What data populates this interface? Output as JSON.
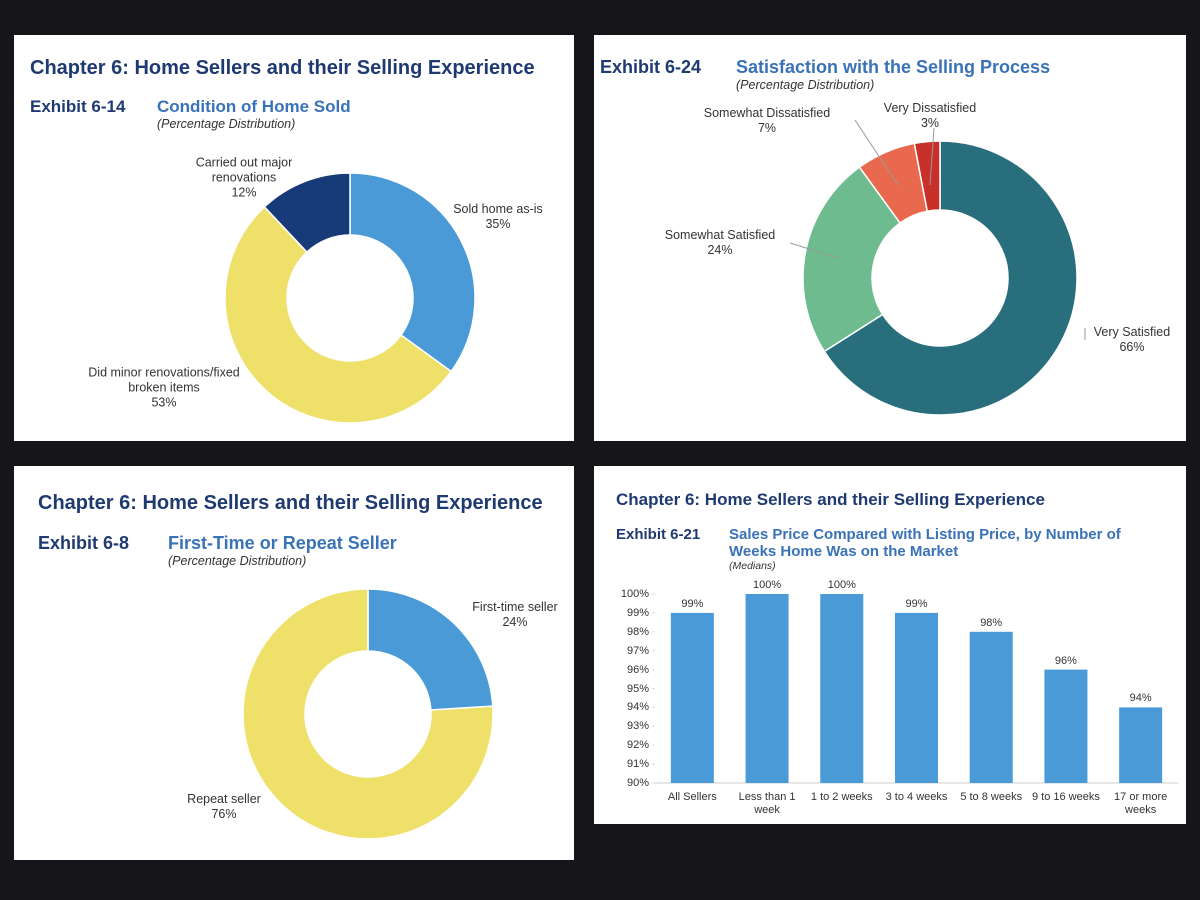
{
  "chart_data": [
    {
      "type": "pie",
      "title": "Chapter 6: Home Sellers and their Selling Experience",
      "exhibit": "Exhibit 6-14",
      "subtitle": "Condition of Home Sold",
      "note": "(Percentage Distribution)",
      "categories": [
        "Sold home as-is",
        "Did minor renovations/fixed broken items",
        "Carried out major renovations"
      ],
      "values": [
        35,
        53,
        12
      ],
      "value_labels": [
        "35%",
        "53%",
        "12%"
      ],
      "colors": [
        "#4a9ad8",
        "#efe06a",
        "#173a78"
      ]
    },
    {
      "type": "pie",
      "exhibit": "Exhibit 6-24",
      "subtitle": "Satisfaction with the Selling Process",
      "note": "(Percentage Distribution)",
      "categories": [
        "Very Satisfied",
        "Somewhat Satisfied",
        "Somewhat Dissatisfied",
        "Very Dissatisfied"
      ],
      "values": [
        66,
        24,
        7,
        3
      ],
      "value_labels": [
        "66%",
        "24%",
        "7%",
        "3%"
      ],
      "colors": [
        "#286e7c",
        "#6dbb8e",
        "#e8694e",
        "#c8302a"
      ]
    },
    {
      "type": "pie",
      "title": "Chapter 6: Home Sellers and their Selling Experience",
      "exhibit": "Exhibit 6-8",
      "subtitle": "First-Time or Repeat Seller",
      "note": "(Percentage Distribution)",
      "categories": [
        "First-time seller",
        "Repeat seller"
      ],
      "values": [
        24,
        76
      ],
      "value_labels": [
        "24%",
        "76%"
      ],
      "colors": [
        "#4a9ad8",
        "#efe06a"
      ]
    },
    {
      "type": "bar",
      "title": "Chapter 6: Home Sellers and their Selling Experience",
      "exhibit": "Exhibit 6-21",
      "subtitle": "Sales Price Compared with Listing Price, by Number of Weeks Home Was on the Market",
      "note": "(Medians)",
      "categories": [
        "All Sellers",
        "Less than 1 week",
        "1 to 2 weeks",
        "3 to 4 weeks",
        "5 to 8 weeks",
        "9 to 16 weeks",
        "17 or more weeks"
      ],
      "values": [
        99,
        100,
        100,
        99,
        98,
        96,
        94
      ],
      "value_labels": [
        "99%",
        "100%",
        "100%",
        "99%",
        "98%",
        "96%",
        "94%"
      ],
      "color": "#4a9ad8",
      "ylim": [
        90,
        100
      ],
      "yticks": [
        {
          "value": 90,
          "label": "90%"
        },
        {
          "value": 91,
          "label": "91%"
        },
        {
          "value": 92,
          "label": "92%"
        },
        {
          "value": 93,
          "label": "93%"
        },
        {
          "value": 94,
          "label": "94%"
        },
        {
          "value": 95,
          "label": "95%"
        },
        {
          "value": 96,
          "label": "96%"
        },
        {
          "value": 97,
          "label": "97%"
        },
        {
          "value": 98,
          "label": "98%"
        },
        {
          "value": 99,
          "label": "99%"
        },
        {
          "value": 100,
          "label": "100%"
        }
      ]
    }
  ]
}
